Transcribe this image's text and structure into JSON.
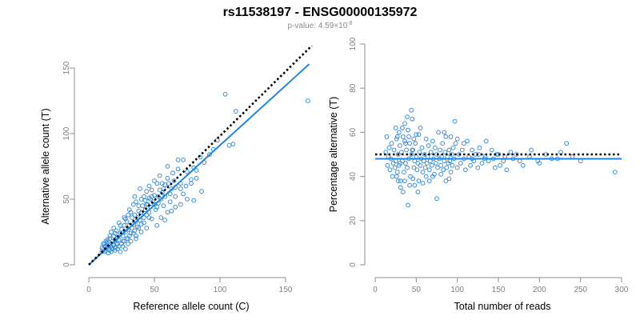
{
  "title": "rs11538197 - ENSG00000135972",
  "subtitle": {
    "label": "p-value:",
    "mantissa": "4.59",
    "exponent": "-8"
  },
  "colors": {
    "points": "#3a8fd9",
    "fit": "#1f86e6",
    "reference": "#000000",
    "axis": "#8c8c8c",
    "ticks": "#7f7f7f"
  },
  "chart_data": [
    {
      "type": "scatter",
      "xlabel": "Reference allele count (C)",
      "ylabel": "Alternative allele count (T)",
      "xlim": [
        0,
        170
      ],
      "ylim": [
        0,
        155
      ],
      "xticks": [
        0,
        50,
        100,
        150
      ],
      "yticks": [
        0,
        50,
        100,
        150
      ],
      "fit_line": {
        "from": [
          0,
          0
        ],
        "to": [
          168,
          153
        ]
      },
      "reference_line": {
        "from": [
          0,
          0
        ],
        "to": [
          170,
          167
        ],
        "style": "dotted"
      },
      "points": [
        [
          167,
          125
        ],
        [
          104,
          130
        ],
        [
          112,
          117
        ],
        [
          110,
          92
        ],
        [
          107,
          91
        ],
        [
          98,
          95
        ],
        [
          95,
          88
        ],
        [
          92,
          84
        ],
        [
          88,
          78
        ],
        [
          85,
          82
        ],
        [
          82,
          72
        ],
        [
          80,
          74
        ],
        [
          78,
          65
        ],
        [
          75,
          71
        ],
        [
          72,
          80
        ],
        [
          70,
          62
        ],
        [
          68,
          73
        ],
        [
          66,
          59
        ],
        [
          65,
          64
        ],
        [
          63,
          58
        ],
        [
          62,
          54
        ],
        [
          60,
          66
        ],
        [
          58,
          61
        ],
        [
          57,
          45
        ],
        [
          56,
          55
        ],
        [
          55,
          50
        ],
        [
          54,
          57
        ],
        [
          53,
          47
        ],
        [
          52,
          62
        ],
        [
          51,
          42
        ],
        [
          50,
          53
        ],
        [
          49,
          48
        ],
        [
          48,
          57
        ],
        [
          47,
          44
        ],
        [
          46,
          51
        ],
        [
          46,
          40
        ],
        [
          45,
          46
        ],
        [
          44,
          38
        ],
        [
          43,
          49
        ],
        [
          43,
          42
        ],
        [
          42,
          36
        ],
        [
          41,
          45
        ],
        [
          40,
          40
        ],
        [
          40,
          31
        ],
        [
          39,
          34
        ],
        [
          38,
          41
        ],
        [
          37,
          29
        ],
        [
          37,
          36
        ],
        [
          36,
          33
        ],
        [
          35,
          26
        ],
        [
          35,
          38
        ],
        [
          34,
          31
        ],
        [
          33,
          28
        ],
        [
          33,
          36
        ],
        [
          32,
          24
        ],
        [
          31,
          30
        ],
        [
          31,
          22
        ],
        [
          30,
          27
        ],
        [
          29,
          33
        ],
        [
          29,
          20
        ],
        [
          28,
          25
        ],
        [
          27,
          18
        ],
        [
          27,
          30
        ],
        [
          26,
          22
        ],
        [
          25,
          16
        ],
        [
          25,
          27
        ],
        [
          24,
          24
        ],
        [
          23,
          19
        ],
        [
          23,
          14
        ],
        [
          22,
          21
        ],
        [
          21,
          16
        ],
        [
          21,
          26
        ],
        [
          20,
          13
        ],
        [
          20,
          19
        ],
        [
          19,
          22
        ],
        [
          19,
          15
        ],
        [
          18,
          12
        ],
        [
          18,
          18
        ],
        [
          17,
          25
        ],
        [
          17,
          14
        ],
        [
          16,
          11
        ],
        [
          16,
          20
        ],
        [
          15,
          15
        ],
        [
          15,
          12
        ],
        [
          14,
          17
        ],
        [
          14,
          13
        ],
        [
          13,
          11
        ],
        [
          13,
          18
        ],
        [
          12,
          14
        ],
        [
          12,
          10
        ],
        [
          11,
          12
        ],
        [
          11,
          16
        ],
        [
          10,
          13
        ],
        [
          10,
          10
        ],
        [
          58,
          34
        ],
        [
          60,
          40
        ],
        [
          52,
          30
        ],
        [
          48,
          35
        ],
        [
          44,
          28
        ],
        [
          40,
          25
        ],
        [
          36,
          22
        ],
        [
          70,
          46
        ],
        [
          75,
          50
        ],
        [
          66,
          44
        ],
        [
          86,
          56
        ],
        [
          80,
          49
        ],
        [
          72,
          54
        ],
        [
          63,
          41
        ],
        [
          55,
          36
        ],
        [
          30,
          16
        ],
        [
          26,
          14
        ],
        [
          22,
          12
        ],
        [
          24,
          30
        ],
        [
          28,
          35
        ],
        [
          32,
          40
        ],
        [
          34,
          46
        ],
        [
          30,
          38
        ],
        [
          20,
          24
        ],
        [
          16,
          22
        ],
        [
          14,
          19
        ],
        [
          38,
          45
        ],
        [
          42,
          52
        ],
        [
          46,
          60
        ],
        [
          50,
          64
        ],
        [
          44,
          56
        ],
        [
          36,
          48
        ],
        [
          40,
          50
        ],
        [
          54,
          68
        ],
        [
          60,
          75
        ],
        [
          64,
          70
        ],
        [
          68,
          80
        ],
        [
          56,
          62
        ],
        [
          48,
          52
        ],
        [
          62,
          48
        ],
        [
          66,
          52
        ],
        [
          70,
          58
        ],
        [
          74,
          60
        ],
        [
          78,
          62
        ],
        [
          82,
          66
        ],
        [
          58,
          52
        ],
        [
          52,
          44
        ],
        [
          46,
          36
        ],
        [
          42,
          32
        ],
        [
          38,
          28
        ],
        [
          34,
          24
        ],
        [
          30,
          20
        ],
        [
          26,
          18
        ],
        [
          22,
          16
        ],
        [
          18,
          13
        ],
        [
          28,
          12
        ],
        [
          32,
          18
        ],
        [
          36,
          20
        ],
        [
          24,
          10
        ],
        [
          20,
          11
        ],
        [
          17,
          10
        ],
        [
          15,
          9
        ],
        [
          13,
          14
        ],
        [
          12,
          16
        ],
        [
          19,
          28
        ],
        [
          23,
          32
        ],
        [
          27,
          36
        ],
        [
          31,
          42
        ],
        [
          35,
          52
        ],
        [
          39,
          58
        ],
        [
          44,
          46
        ],
        [
          47,
          50
        ],
        [
          50,
          46
        ],
        [
          53,
          52
        ],
        [
          57,
          58
        ],
        [
          61,
          62
        ]
      ]
    },
    {
      "type": "scatter",
      "xlabel": "Total number of reads",
      "ylabel": "Percentage alternative (T)",
      "xlim": [
        0,
        300
      ],
      "ylim": [
        0,
        100
      ],
      "xticks": [
        0,
        50,
        100,
        150,
        200,
        250,
        300
      ],
      "yticks": [
        0,
        20,
        40,
        60,
        80,
        100
      ],
      "fit_line": {
        "y": 48
      },
      "reference_line": {
        "y": 50,
        "style": "dotted"
      },
      "points": [
        [
          292,
          42
        ],
        [
          233,
          55
        ],
        [
          226,
          51
        ],
        [
          215,
          48
        ],
        [
          200,
          46
        ],
        [
          198,
          47
        ],
        [
          188,
          49
        ],
        [
          180,
          45
        ],
        [
          172,
          50
        ],
        [
          168,
          48
        ],
        [
          160,
          43
        ],
        [
          156,
          47
        ],
        [
          152,
          45
        ],
        [
          148,
          50
        ],
        [
          146,
          44
        ],
        [
          142,
          52
        ],
        [
          138,
          47
        ],
        [
          135,
          56
        ],
        [
          133,
          48
        ],
        [
          130,
          46
        ],
        [
          127,
          53
        ],
        [
          125,
          44
        ],
        [
          122,
          50
        ],
        [
          120,
          47
        ],
        [
          118,
          52
        ],
        [
          116,
          45
        ],
        [
          114,
          49
        ],
        [
          112,
          56
        ],
        [
          110,
          43
        ],
        [
          108,
          48
        ],
        [
          106,
          52
        ],
        [
          104,
          46
        ],
        [
          102,
          50
        ],
        [
          100,
          44
        ],
        [
          98,
          55
        ],
        [
          97,
          65
        ],
        [
          96,
          48
        ],
        [
          95,
          53
        ],
        [
          94,
          45
        ],
        [
          93,
          50
        ],
        [
          92,
          42
        ],
        [
          91,
          47
        ],
        [
          90,
          52
        ],
        [
          89,
          46
        ],
        [
          88,
          49
        ],
        [
          87,
          44
        ],
        [
          86,
          58
        ],
        [
          85,
          51
        ],
        [
          84,
          47
        ],
        [
          83,
          43
        ],
        [
          82,
          55
        ],
        [
          81,
          49
        ],
        [
          80,
          45
        ],
        [
          79,
          52
        ],
        [
          78,
          48
        ],
        [
          77,
          60
        ],
        [
          76,
          44
        ],
        [
          75,
          50
        ],
        [
          74,
          46
        ],
        [
          73,
          53
        ],
        [
          72,
          41
        ],
        [
          71,
          48
        ],
        [
          70,
          56
        ],
        [
          69,
          45
        ],
        [
          68,
          51
        ],
        [
          67,
          47
        ],
        [
          66,
          43
        ],
        [
          65,
          54
        ],
        [
          64,
          49
        ],
        [
          63,
          46
        ],
        [
          62,
          57
        ],
        [
          61,
          44
        ],
        [
          60,
          50
        ],
        [
          59,
          47
        ],
        [
          58,
          42
        ],
        [
          57,
          53
        ],
        [
          56,
          48
        ],
        [
          55,
          45
        ],
        [
          54,
          51
        ],
        [
          53,
          59
        ],
        [
          52,
          46
        ],
        [
          51,
          43
        ],
        [
          50,
          49
        ],
        [
          49,
          55
        ],
        [
          48,
          47
        ],
        [
          47,
          44
        ],
        [
          46,
          52
        ],
        [
          45,
          66
        ],
        [
          44,
          50
        ],
        [
          43,
          40
        ],
        [
          42,
          55
        ],
        [
          41,
          48
        ],
        [
          40,
          61
        ],
        [
          39,
          44
        ],
        [
          38,
          52
        ],
        [
          37,
          46
        ],
        [
          36,
          56
        ],
        [
          35,
          42
        ],
        [
          34,
          58
        ],
        [
          33,
          47
        ],
        [
          32,
          51
        ],
        [
          31,
          38
        ],
        [
          30,
          54
        ],
        [
          29,
          45
        ],
        [
          28,
          50
        ],
        [
          27,
          42
        ],
        [
          26,
          57
        ],
        [
          25,
          47
        ],
        [
          24,
          44
        ],
        [
          23,
          52
        ],
        [
          22,
          46
        ],
        [
          21,
          40
        ],
        [
          20,
          55
        ],
        [
          19,
          48
        ],
        [
          18,
          43
        ],
        [
          17,
          53
        ],
        [
          16,
          49
        ],
        [
          15,
          45
        ],
        [
          14,
          58
        ],
        [
          13,
          51
        ],
        [
          44,
          70
        ],
        [
          39,
          67
        ],
        [
          36,
          64
        ],
        [
          52,
          33
        ],
        [
          48,
          36
        ],
        [
          40,
          27
        ],
        [
          31,
          35
        ],
        [
          28,
          38
        ],
        [
          26,
          40
        ],
        [
          34,
          33
        ],
        [
          30,
          46
        ],
        [
          36,
          38
        ],
        [
          42,
          36
        ],
        [
          46,
          39
        ],
        [
          53,
          38
        ],
        [
          58,
          37
        ],
        [
          62,
          40
        ],
        [
          66,
          38
        ],
        [
          75,
          30
        ],
        [
          70,
          40
        ],
        [
          80,
          41
        ],
        [
          86,
          38
        ],
        [
          90,
          39
        ],
        [
          84,
          60
        ],
        [
          92,
          58
        ],
        [
          100,
          57
        ],
        [
          108,
          55
        ],
        [
          118,
          48
        ],
        [
          126,
          50
        ],
        [
          134,
          49
        ],
        [
          144,
          48
        ],
        [
          150,
          50
        ],
        [
          158,
          49
        ],
        [
          165,
          51
        ],
        [
          176,
          47
        ],
        [
          190,
          52
        ],
        [
          208,
          50
        ],
        [
          222,
          48
        ],
        [
          240,
          49
        ],
        [
          250,
          47
        ],
        [
          25,
          62
        ],
        [
          27,
          58
        ],
        [
          29,
          60
        ],
        [
          33,
          62
        ],
        [
          37,
          55
        ],
        [
          41,
          58
        ],
        [
          45,
          52
        ],
        [
          47,
          57
        ],
        [
          50,
          59
        ],
        [
          55,
          62
        ]
      ]
    }
  ]
}
